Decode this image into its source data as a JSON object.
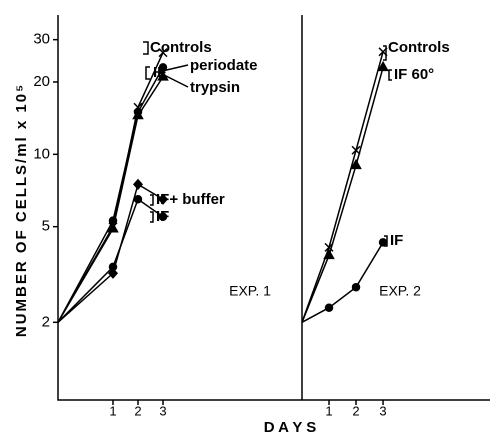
{
  "chart_data": [
    {
      "type": "line",
      "title": "EXP. 1",
      "ylabel": "NUMBER OF CELLS/ml x 10⁵",
      "xlabel": "D A Y S",
      "log_y": true,
      "ylim": [
        0.95,
        38
      ],
      "yticks": [
        2,
        5,
        10,
        20,
        30
      ],
      "xlim": [
        -1.2,
        8.56
      ],
      "xticks": [
        1,
        2,
        3
      ],
      "bracket_label": "IF",
      "x": [
        -1.2,
        1,
        2,
        3
      ],
      "series": [
        {
          "name": "Controls",
          "color": "#000000",
          "marker": "x",
          "values": [
            2,
            5,
            15.7,
            26.5
          ]
        },
        {
          "name": "periodate",
          "color": "#000000",
          "marker": "circle",
          "values": [
            2,
            5.3,
            15,
            23
          ]
        },
        {
          "name": "trypsin",
          "color": "#000000",
          "marker": "triangle",
          "values": [
            2,
            4.9,
            14.5,
            21
          ]
        },
        {
          "name": "IF+ buffer",
          "color": "#000000",
          "marker": "diamond",
          "values": [
            2,
            3.2,
            7.5,
            6.5
          ]
        },
        {
          "name": "IF",
          "color": "#000000",
          "marker": "circle",
          "values": [
            2,
            3.4,
            6.5,
            5.5
          ]
        }
      ]
    },
    {
      "type": "line",
      "title": "EXP. 2",
      "log_y": true,
      "ylim": [
        0.95,
        38
      ],
      "xlim": [
        0,
        6.96
      ],
      "xticks": [
        1,
        2,
        3
      ],
      "x": [
        0,
        1,
        2,
        3
      ],
      "series": [
        {
          "name": "Controls",
          "color": "#000000",
          "marker": "x",
          "values": [
            2,
            4.1,
            10.4,
            26.7
          ]
        },
        {
          "name": "IF 60°",
          "color": "#000000",
          "marker": "triangle",
          "values": [
            2,
            3.8,
            9,
            23
          ]
        },
        {
          "name": "IF",
          "color": "#000000",
          "marker": "circle",
          "values": [
            2,
            2.3,
            2.8,
            4.3
          ]
        }
      ]
    }
  ]
}
